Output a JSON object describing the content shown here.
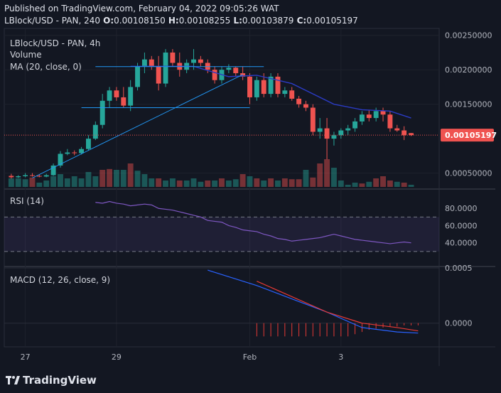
{
  "header": {
    "published": "Published on TradingView.com, February 04, 2022 09:05:26 WAT",
    "symbol_short": "LBlock/USD - PAN, 240",
    "o_label": "O:",
    "o_value": "0.00108150",
    "h_label": "H:",
    "h_value": "0.00108255",
    "l_label": "L:",
    "l_value": "0.00103879",
    "c_label": "C:",
    "c_value": "0.00105197"
  },
  "brand": {
    "name": "TradingView"
  },
  "colors": {
    "up": "#26a69a",
    "down": "#ef5350",
    "ma": "#2b3bc4",
    "rsi": "#7e57c2",
    "macd": "#2962ff",
    "signal": "#e53935",
    "bg": "#131722"
  },
  "chart_data": [
    {
      "type": "candlestick",
      "title": "LBlock/USD - PAN, 4h",
      "legend": [
        "Volume",
        "MA (20, close, 0)"
      ],
      "ylim": [
        0.0003,
        0.0026
      ],
      "price_labels": [
        "0.00250000",
        "0.00200000",
        "0.00150000",
        "0.00050000"
      ],
      "price_ticks": [
        0.0025,
        0.002,
        0.0015,
        0.0005
      ],
      "last_price": 0.00105197,
      "last_price_label": "0.00105197",
      "x_labels": [
        "27",
        "29",
        "Feb",
        "3"
      ],
      "x_label_index": [
        2,
        15,
        34,
        47
      ],
      "candles": [
        [
          0.00046,
          0.00049,
          0.00042,
          0.00044
        ],
        [
          0.00044,
          0.00047,
          0.00043,
          0.000455
        ],
        [
          0.000455,
          0.0005,
          0.00044,
          0.00047
        ],
        [
          0.00047,
          0.0005,
          0.00045,
          0.00046
        ],
        [
          0.00046,
          0.00048,
          0.00044,
          0.00045
        ],
        [
          0.00045,
          0.00049,
          0.00044,
          0.00047
        ],
        [
          0.00047,
          0.00064,
          0.00046,
          0.00061
        ],
        [
          0.00061,
          0.00082,
          0.00058,
          0.00078
        ],
        [
          0.00078,
          0.00085,
          0.00076,
          0.0008
        ],
        [
          0.0008,
          0.00083,
          0.00076,
          0.00079
        ],
        [
          0.00079,
          0.00088,
          0.00077,
          0.00085
        ],
        [
          0.00085,
          0.00105,
          0.00083,
          0.001
        ],
        [
          0.001,
          0.00125,
          0.00098,
          0.0012
        ],
        [
          0.0012,
          0.00165,
          0.00115,
          0.00155
        ],
        [
          0.00155,
          0.00175,
          0.00145,
          0.0017
        ],
        [
          0.0017,
          0.00175,
          0.00155,
          0.0016
        ],
        [
          0.0016,
          0.00175,
          0.00145,
          0.00148
        ],
        [
          0.00148,
          0.00185,
          0.0014,
          0.00175
        ],
        [
          0.00175,
          0.0021,
          0.0017,
          0.00205
        ],
        [
          0.00205,
          0.00225,
          0.00195,
          0.00215
        ],
        [
          0.00215,
          0.0022,
          0.002,
          0.00205
        ],
        [
          0.00205,
          0.0022,
          0.0017,
          0.0018
        ],
        [
          0.0018,
          0.0023,
          0.00175,
          0.00225
        ],
        [
          0.00225,
          0.0023,
          0.00205,
          0.0021
        ],
        [
          0.0021,
          0.00225,
          0.0019,
          0.002
        ],
        [
          0.002,
          0.00215,
          0.00195,
          0.0021
        ],
        [
          0.0021,
          0.0023,
          0.002,
          0.00215
        ],
        [
          0.00215,
          0.0022,
          0.00205,
          0.0021
        ],
        [
          0.0021,
          0.00215,
          0.00195,
          0.002
        ],
        [
          0.002,
          0.00205,
          0.0018,
          0.00185
        ],
        [
          0.00185,
          0.00205,
          0.0018,
          0.002
        ],
        [
          0.002,
          0.00208,
          0.00195,
          0.00203
        ],
        [
          0.00203,
          0.00205,
          0.0019,
          0.00195
        ],
        [
          0.00195,
          0.00205,
          0.00185,
          0.0019
        ],
        [
          0.0019,
          0.00195,
          0.0015,
          0.0016
        ],
        [
          0.0016,
          0.0019,
          0.00155,
          0.00185
        ],
        [
          0.00185,
          0.00195,
          0.0016,
          0.00165
        ],
        [
          0.00165,
          0.00195,
          0.0016,
          0.0019
        ],
        [
          0.0019,
          0.00195,
          0.0016,
          0.00165
        ],
        [
          0.00165,
          0.00175,
          0.0016,
          0.0017
        ],
        [
          0.0017,
          0.00175,
          0.00155,
          0.00158
        ],
        [
          0.00158,
          0.00162,
          0.00145,
          0.0015
        ],
        [
          0.0015,
          0.00155,
          0.0014,
          0.00145
        ],
        [
          0.00145,
          0.0015,
          0.00105,
          0.0011
        ],
        [
          0.0011,
          0.0013,
          0.001,
          0.00115
        ],
        [
          0.00115,
          0.0013,
          0.0007,
          0.001
        ],
        [
          0.001,
          0.0011,
          0.0009,
          0.00105
        ],
        [
          0.00105,
          0.00115,
          0.001,
          0.00112
        ],
        [
          0.00112,
          0.0012,
          0.00105,
          0.00115
        ],
        [
          0.00115,
          0.0013,
          0.0011,
          0.00125
        ],
        [
          0.00125,
          0.0014,
          0.0012,
          0.00135
        ],
        [
          0.00135,
          0.00142,
          0.00125,
          0.0013
        ],
        [
          0.0013,
          0.00145,
          0.00125,
          0.0014
        ],
        [
          0.0014,
          0.00145,
          0.00125,
          0.00135
        ],
        [
          0.00135,
          0.0014,
          0.0011,
          0.00115
        ],
        [
          0.00115,
          0.0012,
          0.0011,
          0.00112
        ],
        [
          0.00112,
          0.00118,
          0.00098,
          0.00105
        ],
        [
          0.001081,
          0.001083,
          0.001039,
          0.001052
        ]
      ],
      "volume": [
        0.2,
        0.2,
        0.18,
        0.22,
        0.1,
        0.15,
        0.25,
        0.3,
        0.2,
        0.25,
        0.2,
        0.35,
        0.25,
        0.4,
        0.42,
        0.4,
        0.4,
        0.55,
        0.38,
        0.3,
        0.2,
        0.2,
        0.15,
        0.2,
        0.15,
        0.15,
        0.2,
        0.12,
        0.15,
        0.15,
        0.2,
        0.15,
        0.18,
        0.3,
        0.25,
        0.2,
        0.15,
        0.2,
        0.15,
        0.2,
        0.18,
        0.18,
        0.4,
        0.22,
        0.55,
        0.65,
        0.45,
        0.15,
        0.05,
        0.1,
        0.08,
        0.12,
        0.2,
        0.25,
        0.15,
        0.12,
        0.1,
        0.05
      ],
      "volume_up": [
        true,
        true,
        true,
        false,
        true,
        true,
        true,
        true,
        true,
        true,
        true,
        true,
        true,
        false,
        false,
        true,
        true,
        false,
        true,
        true,
        true,
        false,
        true,
        true,
        false,
        true,
        true,
        true,
        false,
        true,
        false,
        true,
        true,
        false,
        true,
        false,
        true,
        false,
        true,
        false,
        false,
        false,
        true,
        false,
        false,
        false,
        true,
        true,
        true,
        true,
        false,
        true,
        false,
        false,
        false,
        true,
        false,
        true
      ],
      "ma": [
        [
          17,
          0.00205
        ],
        [
          26,
          0.00205
        ],
        [
          31,
          0.0019
        ],
        [
          35,
          0.00192
        ],
        [
          40,
          0.0018
        ],
        [
          46,
          0.0015
        ],
        [
          50,
          0.00142
        ],
        [
          54,
          0.0014
        ],
        [
          57,
          0.0013
        ]
      ],
      "drawings": [
        {
          "kind": "trendline",
          "from": [
            3,
            0.00043
          ],
          "to": [
            33,
            0.00193
          ]
        },
        {
          "kind": "hline",
          "from": [
            12,
            0.002045
          ],
          "to": [
            36,
            0.002045
          ]
        },
        {
          "kind": "hline",
          "from": [
            10,
            0.00145
          ],
          "to": [
            34,
            0.00145
          ]
        }
      ]
    },
    {
      "type": "line",
      "title": "RSI (14)",
      "ylim": [
        15,
        100
      ],
      "y_labels": [
        "80.0000",
        "60.0000",
        "40.0000"
      ],
      "y_ticks": [
        80,
        60,
        40
      ],
      "bands": [
        70,
        30
      ],
      "values": [
        87,
        86,
        88,
        86,
        85,
        83,
        84,
        85,
        84,
        80,
        79,
        78,
        76,
        74,
        72,
        70,
        66,
        65,
        64,
        60,
        58,
        55,
        54,
        53,
        50,
        48,
        45,
        44,
        42,
        43,
        44,
        45,
        46,
        48,
        50,
        48,
        46,
        44,
        43,
        42,
        41,
        40,
        39,
        40,
        41,
        40
      ]
    },
    {
      "type": "line",
      "title": "MACD (12, 26, close, 9)",
      "ylim": [
        -0.00015,
        0.0005
      ],
      "y_labels": [
        "0.0005",
        "0.0000"
      ],
      "y_ticks": [
        0.0005,
        0.0
      ],
      "series": [
        {
          "name": "MACD",
          "x": [
            28,
            35,
            40,
            45,
            50,
            55,
            58
          ],
          "values": [
            0.00048,
            0.00034,
            0.00022,
            0.0001,
            -4e-05,
            -8e-05,
            -9e-05
          ]
        },
        {
          "name": "Signal",
          "x": [
            35,
            40,
            45,
            50,
            55,
            58
          ],
          "values": [
            0.00038,
            0.00024,
            0.0001,
            0.0,
            -4e-05,
            -7e-05
          ]
        }
      ],
      "histogram_x": [
        35,
        36,
        37,
        38,
        39,
        40,
        41,
        42,
        43,
        44,
        45,
        46,
        47,
        48,
        49,
        50,
        51,
        52,
        53,
        54,
        55,
        56,
        57,
        58
      ],
      "histogram": [
        -0.00012,
        -0.00012,
        -0.00012,
        -0.00012,
        -0.00012,
        -0.00012,
        -0.00012,
        -0.00012,
        -0.00012,
        -0.00012,
        -0.00012,
        -0.00012,
        -0.00012,
        -0.00012,
        -0.0001,
        -8e-05,
        -6e-05,
        -5e-05,
        -4e-05,
        -3e-05,
        -3e-05,
        -2e-05,
        -2e-05,
        -2e-05
      ]
    }
  ]
}
